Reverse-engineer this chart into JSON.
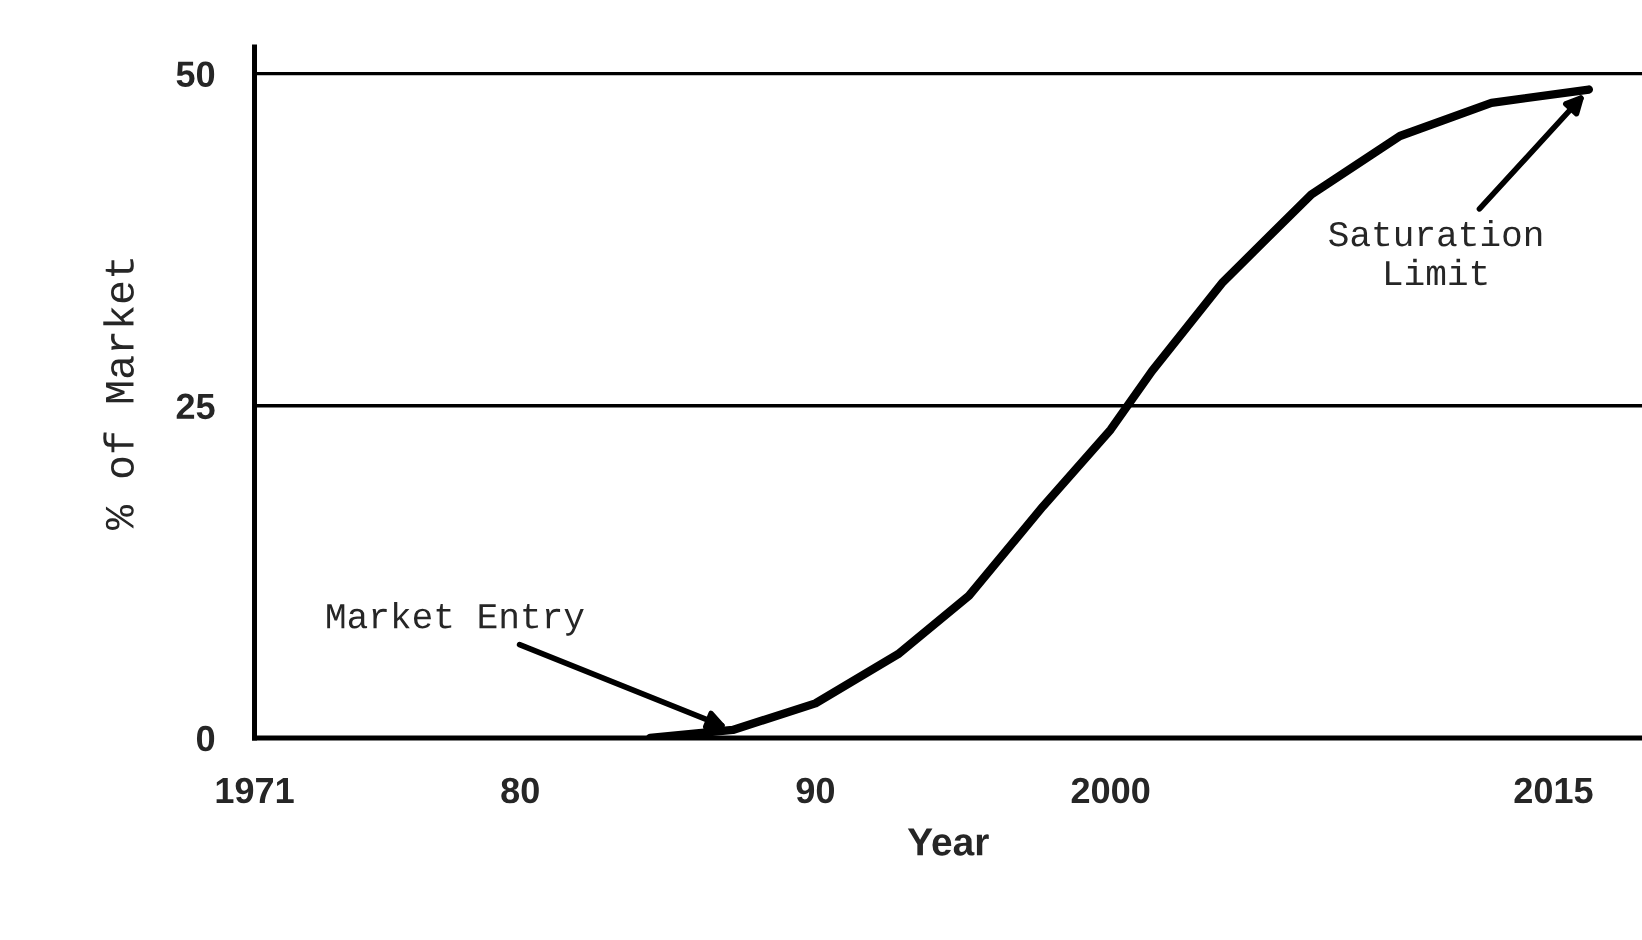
{
  "chart_data": {
    "type": "line",
    "xlabel": "Year",
    "ylabel": "% of Market",
    "x": [
      1984.4,
      1987.2,
      1990,
      1992.8,
      1995.2,
      1997.7,
      2000,
      2001.4,
      2003.8,
      2006.8,
      2009.8,
      2012.9,
      2016.2
    ],
    "series": [
      {
        "color": "#000000",
        "values": [
          0,
          0.6,
          2.6,
          6.3,
          10.7,
          17.4,
          23.2,
          27.6,
          34.3,
          40.9,
          45.3,
          47.8,
          48.8
        ]
      }
    ],
    "xlim": [
      1971,
      2018
    ],
    "xticks": [
      1971,
      {
        "value": 1980,
        "label": "80"
      },
      {
        "value": 1990,
        "label": "90"
      },
      2000,
      2015
    ],
    "ylim": [
      0,
      52
    ],
    "yticks": [
      0,
      25,
      50
    ],
    "grid": "y",
    "legend": false,
    "marker": "none",
    "line_style": "solid",
    "annotations": [
      {
        "text": "Market Entry",
        "x": 1987.2,
        "y": 0.6
      },
      {
        "text": "Saturation\nLimit",
        "x": 2016.2,
        "y": 48.8
      }
    ]
  }
}
